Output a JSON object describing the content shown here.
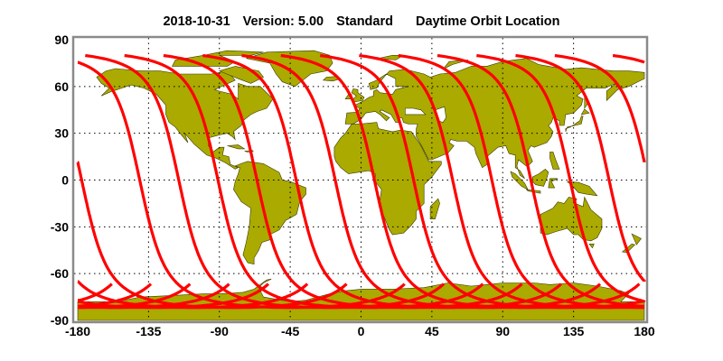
{
  "title": {
    "date": "2018-10-31",
    "version": "Version: 5.00",
    "mode": "Standard",
    "product": "Daytime Orbit Location"
  },
  "colors": {
    "land": "#aaaa00",
    "coast": "#3a3a00",
    "track": "#ff0000",
    "frame": "#8a8a8a",
    "grid": "#000000"
  },
  "chart_data": {
    "type": "map",
    "projection": "equirectangular",
    "xlim": [
      -180,
      180
    ],
    "ylim": [
      -90,
      90
    ],
    "grid": true,
    "x_ticks": [
      "-180",
      "-135",
      "-90",
      "-45",
      "0",
      "45",
      "90",
      "135",
      "180"
    ],
    "y_ticks": [
      "90",
      "60",
      "30",
      "0",
      "-30",
      "-60",
      "-90"
    ],
    "tracks": {
      "description_type": "ascending sun-synchronous ground tracks",
      "equator_crossings_lon": [
        -140.6,
        -115.8,
        -90.9,
        -66.1,
        -41.2,
        -16.4,
        8.5,
        33.4,
        58.2,
        83.1,
        107.9,
        132.8,
        157.6,
        182.5
      ],
      "lat_range": [
        -82,
        80
      ]
    }
  }
}
